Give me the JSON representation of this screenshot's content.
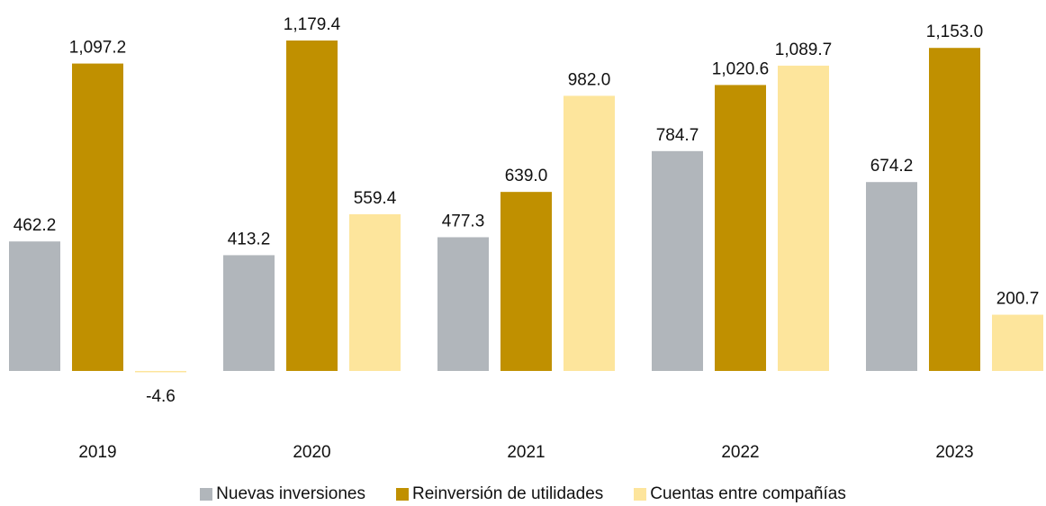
{
  "chart_data": {
    "type": "bar",
    "categories": [
      "2019",
      "2020",
      "2021",
      "2022",
      "2023"
    ],
    "series": [
      {
        "name": "Nuevas inversiones",
        "color": "#b1b6bb",
        "values": [
          462.2,
          413.2,
          477.3,
          784.7,
          674.2
        ],
        "labels": [
          "462.2",
          "413.2",
          "477.3",
          "784.7",
          "674.2"
        ]
      },
      {
        "name": "Reinversión de utilidades",
        "color": "#c09000",
        "values": [
          1097.2,
          1179.4,
          639.0,
          1020.6,
          1153.0
        ],
        "labels": [
          "1,097.2",
          "1,179.4",
          "639.0",
          "1,020.6",
          "1,153.0"
        ]
      },
      {
        "name": "Cuentas entre compañías",
        "color": "#fde59c",
        "values": [
          -4.6,
          559.4,
          982.0,
          1089.7,
          200.7
        ],
        "labels": [
          "-4.6",
          "559.4",
          "982.0",
          "1,089.7",
          "200.7"
        ]
      }
    ],
    "ylim": [
      -4.6,
      1179.4
    ],
    "grid": false,
    "legend_position": "bottom"
  }
}
